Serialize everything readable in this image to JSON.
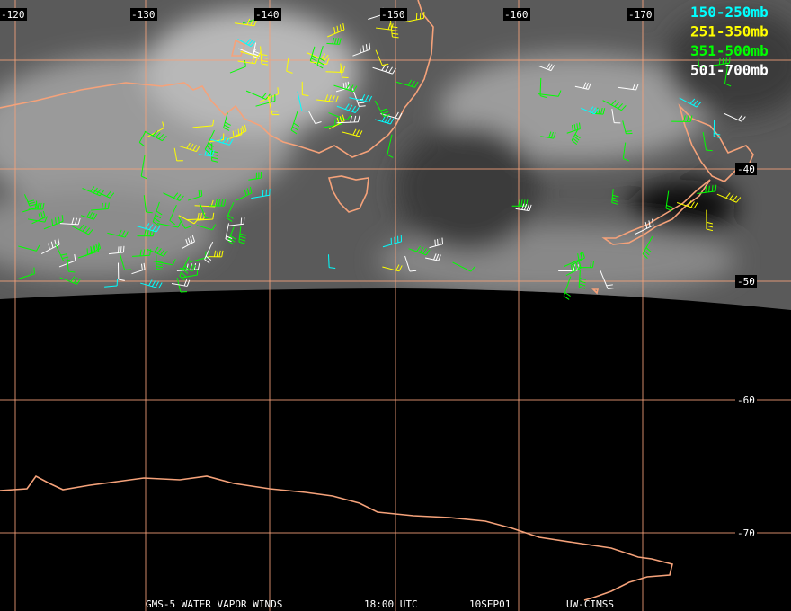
{
  "map": {
    "lon_labels": [
      "-120",
      "-130",
      "-140",
      "-150",
      "-160",
      "-170"
    ],
    "lat_labels": [
      "-40",
      "-50",
      "-60",
      "-70"
    ],
    "legend": [
      {
        "label": "150-250mb",
        "color": "#00ffff"
      },
      {
        "label": "251-350mb",
        "color": "#ffff00"
      },
      {
        "label": "351-500mb",
        "color": "#00ff00"
      },
      {
        "label": "501-700mb",
        "color": "#ffffff"
      }
    ],
    "footer": [
      "GMS-5 WATER VAPOR WINDS",
      "18:00 UTC",
      "10SEP01",
      "UW-CIMSS"
    ]
  }
}
